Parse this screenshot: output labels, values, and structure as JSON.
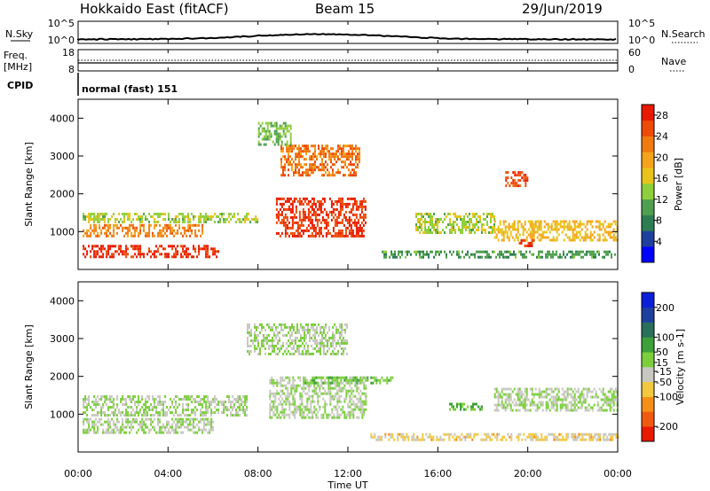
{
  "header": {
    "title": "Hokkaido East (fitACF)",
    "beam": "Beam 15",
    "date": "29/Jun/2019"
  },
  "panels": {
    "nsky_label": "N.Sky",
    "nsky_ticks": [
      "10^5",
      "10^0"
    ],
    "nsearch_label": "N.Search",
    "nsearch_ticks": [
      "10^5",
      "10^0"
    ],
    "freq_label_1": "Freq.",
    "freq_label_2": "[MHz]",
    "freq_ticks": [
      "18",
      "8"
    ],
    "nave_label": "Nave",
    "nave_ticks": [
      "60",
      "0"
    ],
    "cpid_label": "CPID",
    "cpid_text": "normal (fast) 151"
  },
  "colors": {
    "power": [
      "#0000ff",
      "#1f3f9f",
      "#2e7d52",
      "#4f9f4f",
      "#8fce3c",
      "#e8c41a",
      "#f5a31a",
      "#f07a10",
      "#ee4a08",
      "#e81a00"
    ],
    "velocity": [
      "#e81a00",
      "#f05a10",
      "#f58f18",
      "#f2c840",
      "#c8c8c0",
      "#7ccf3c",
      "#3ea03a",
      "#2a6f5a",
      "#1f3f9f",
      "#0a1fd8"
    ]
  },
  "chart_data": [
    {
      "type": "heatmap",
      "name": "power",
      "ylabel": "Slant Range [km]",
      "yticks": [
        "1000",
        "2000",
        "3000",
        "4000"
      ],
      "ylim": [
        0,
        4500
      ],
      "xlim": [
        0,
        24
      ],
      "colorbar_label": "Power [dB]",
      "colorbar_ticks": [
        "4",
        "8",
        "12",
        "16",
        "20",
        "24",
        "28"
      ],
      "colorbar_range": [
        0,
        30
      ],
      "regions": [
        {
          "t": [
            0.2,
            6.2
          ],
          "r": [
            350,
            650
          ],
          "level": 28
        },
        {
          "t": [
            0.2,
            5.5
          ],
          "r": [
            900,
            1200
          ],
          "level": 22
        },
        {
          "t": [
            0.2,
            8.0
          ],
          "r": [
            1250,
            1500
          ],
          "level": 14
        },
        {
          "t": [
            8.8,
            12.8
          ],
          "r": [
            900,
            1900
          ],
          "level": 27
        },
        {
          "t": [
            9.0,
            12.5
          ],
          "r": [
            2500,
            3300
          ],
          "level": 23
        },
        {
          "t": [
            8.0,
            9.5
          ],
          "r": [
            3300,
            3900
          ],
          "level": 12
        },
        {
          "t": [
            15.0,
            18.5
          ],
          "r": [
            1000,
            1500
          ],
          "level": 14
        },
        {
          "t": [
            18.5,
            24.0
          ],
          "r": [
            800,
            1300
          ],
          "level": 18
        },
        {
          "t": [
            19.0,
            20.0
          ],
          "r": [
            2200,
            2600
          ],
          "level": 26
        },
        {
          "t": [
            19.6,
            20.3
          ],
          "r": [
            650,
            800
          ],
          "level": 27
        },
        {
          "t": [
            13.5,
            24.0
          ],
          "r": [
            300,
            500
          ],
          "level": 10
        }
      ]
    },
    {
      "type": "heatmap",
      "name": "velocity",
      "ylabel": "Slant Range [km]",
      "yticks": [
        "1000",
        "2000",
        "3000",
        "4000"
      ],
      "ylim": [
        0,
        4500
      ],
      "xlim": [
        0,
        24
      ],
      "xlabel": "Time UT",
      "xticks": [
        "00:00",
        "04:00",
        "08:00",
        "12:00",
        "16:00",
        "20:00",
        "00:00"
      ],
      "colorbar_label": "Velocity [m s-1]",
      "colorbar_ticks": [
        "-200",
        "-100",
        "-50",
        "-15",
        "15",
        "50",
        "100",
        "200"
      ],
      "colorbar_range": [
        -250,
        250
      ],
      "regions": [
        {
          "t": [
            0.2,
            6.0
          ],
          "r": [
            500,
            900
          ],
          "level": 0
        },
        {
          "t": [
            0.2,
            7.5
          ],
          "r": [
            1000,
            1500
          ],
          "level": 0
        },
        {
          "t": [
            8.5,
            12.8
          ],
          "r": [
            900,
            2000
          ],
          "level": 0
        },
        {
          "t": [
            7.5,
            12.0
          ],
          "r": [
            2600,
            3400
          ],
          "level": 0
        },
        {
          "t": [
            10.0,
            14.0
          ],
          "r": [
            1800,
            2000
          ],
          "level": 30
        },
        {
          "t": [
            16.5,
            18.0
          ],
          "r": [
            1100,
            1300
          ],
          "level": 40
        },
        {
          "t": [
            18.5,
            24.0
          ],
          "r": [
            1100,
            1700
          ],
          "level": 0
        },
        {
          "t": [
            13.0,
            24.0
          ],
          "r": [
            300,
            500
          ],
          "level": -60
        }
      ]
    }
  ]
}
